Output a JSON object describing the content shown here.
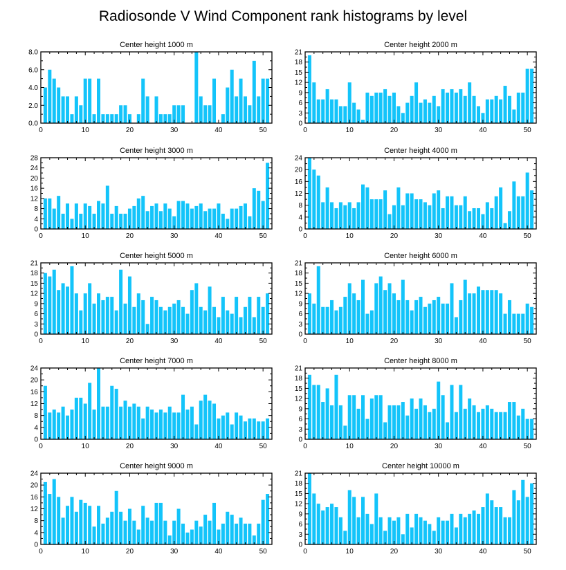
{
  "figure": {
    "title": "Radiosonde V Wind Component rank histograms by level",
    "bar_color": "#13c4fa",
    "axis_color": "#000000"
  },
  "chart_data": [
    {
      "type": "bar",
      "title": "Center height 1000 m",
      "xlabel": "",
      "ylabel": "",
      "xlim": [
        0,
        52
      ],
      "xticks": [
        0,
        10,
        20,
        30,
        40,
        50
      ],
      "ylim": [
        0,
        8
      ],
      "yticks": [
        0,
        2,
        4,
        6,
        8
      ],
      "ytick_labels": [
        "0.0",
        "2.0",
        "4.0",
        "6.0",
        "8.0"
      ],
      "x": [
        1,
        2,
        3,
        4,
        5,
        6,
        7,
        8,
        9,
        10,
        11,
        12,
        13,
        14,
        15,
        16,
        17,
        18,
        19,
        20,
        21,
        22,
        23,
        24,
        25,
        26,
        27,
        28,
        29,
        30,
        31,
        32,
        33,
        34,
        35,
        36,
        37,
        38,
        39,
        40,
        41,
        42,
        43,
        44,
        45,
        46,
        47,
        48,
        49,
        50,
        51
      ],
      "values": [
        4,
        6,
        5,
        4,
        3,
        3,
        1,
        3,
        2,
        5,
        5,
        1,
        5,
        1,
        1,
        1,
        1,
        2,
        2,
        1,
        0,
        1,
        5,
        3,
        0,
        3,
        1,
        1,
        1,
        2,
        2,
        2,
        0,
        0,
        8,
        3,
        2,
        2,
        5,
        0,
        1,
        4,
        6,
        3,
        5,
        3,
        2,
        7,
        3,
        5,
        5
      ]
    },
    {
      "type": "bar",
      "title": "Center height 2000 m",
      "xlabel": "",
      "ylabel": "",
      "xlim": [
        0,
        52
      ],
      "xticks": [
        0,
        10,
        20,
        30,
        40,
        50
      ],
      "ylim": [
        0,
        21
      ],
      "yticks": [
        0,
        3,
        6,
        9,
        12,
        15,
        18,
        21
      ],
      "ytick_labels": [
        "0",
        "3",
        "6",
        "9",
        "12",
        "15",
        "18",
        "21"
      ],
      "x": [
        1,
        2,
        3,
        4,
        5,
        6,
        7,
        8,
        9,
        10,
        11,
        12,
        13,
        14,
        15,
        16,
        17,
        18,
        19,
        20,
        21,
        22,
        23,
        24,
        25,
        26,
        27,
        28,
        29,
        30,
        31,
        32,
        33,
        34,
        35,
        36,
        37,
        38,
        39,
        40,
        41,
        42,
        43,
        44,
        45,
        46,
        47,
        48,
        49,
        50,
        51
      ],
      "values": [
        20,
        12,
        7,
        7,
        10,
        7,
        7,
        5,
        5,
        12,
        6,
        4,
        1,
        9,
        8,
        9,
        9,
        10,
        8,
        9,
        5,
        3,
        6,
        8,
        12,
        6,
        7,
        6,
        8,
        5,
        10,
        9,
        10,
        9,
        10,
        8,
        12,
        8,
        5,
        3,
        7,
        7,
        8,
        7,
        11,
        8,
        4,
        9,
        9,
        16,
        16
      ]
    },
    {
      "type": "bar",
      "title": "Center height 3000 m",
      "xlabel": "",
      "ylabel": "",
      "xlim": [
        0,
        52
      ],
      "xticks": [
        0,
        10,
        20,
        30,
        40,
        50
      ],
      "ylim": [
        0,
        28
      ],
      "yticks": [
        0,
        4,
        8,
        12,
        16,
        20,
        24,
        28
      ],
      "ytick_labels": [
        "0",
        "4",
        "8",
        "12",
        "16",
        "20",
        "24",
        "28"
      ],
      "x": [
        1,
        2,
        3,
        4,
        5,
        6,
        7,
        8,
        9,
        10,
        11,
        12,
        13,
        14,
        15,
        16,
        17,
        18,
        19,
        20,
        21,
        22,
        23,
        24,
        25,
        26,
        27,
        28,
        29,
        30,
        31,
        32,
        33,
        34,
        35,
        36,
        37,
        38,
        39,
        40,
        41,
        42,
        43,
        44,
        45,
        46,
        47,
        48,
        49,
        50,
        51
      ],
      "values": [
        12,
        12,
        8,
        13,
        6,
        10,
        4,
        10,
        6,
        10,
        9,
        6,
        11,
        10,
        17,
        6,
        9,
        6,
        6,
        8,
        9,
        12,
        13,
        7,
        9,
        10,
        7,
        10,
        8,
        5,
        11,
        11,
        10,
        8,
        9,
        10,
        7,
        8,
        8,
        10,
        6,
        4,
        8,
        8,
        9,
        10,
        5,
        16,
        15,
        11,
        26
      ]
    },
    {
      "type": "bar",
      "title": "Center height 4000 m",
      "xlabel": "",
      "ylabel": "",
      "xlim": [
        0,
        52
      ],
      "xticks": [
        0,
        10,
        20,
        30,
        40,
        50
      ],
      "ylim": [
        0,
        24
      ],
      "yticks": [
        0,
        4,
        8,
        12,
        16,
        20,
        24
      ],
      "ytick_labels": [
        "0",
        "4",
        "8",
        "12",
        "16",
        "20",
        "24"
      ],
      "x": [
        1,
        2,
        3,
        4,
        5,
        6,
        7,
        8,
        9,
        10,
        11,
        12,
        13,
        14,
        15,
        16,
        17,
        18,
        19,
        20,
        21,
        22,
        23,
        24,
        25,
        26,
        27,
        28,
        29,
        30,
        31,
        32,
        33,
        34,
        35,
        36,
        37,
        38,
        39,
        40,
        41,
        42,
        43,
        44,
        45,
        46,
        47,
        48,
        49,
        50,
        51
      ],
      "values": [
        24,
        20,
        18,
        9,
        14,
        9,
        7,
        9,
        8,
        9,
        7,
        9,
        15,
        14,
        10,
        10,
        10,
        13,
        5,
        8,
        14,
        8,
        12,
        12,
        10,
        10,
        9,
        8,
        12,
        13,
        7,
        11,
        11,
        8,
        8,
        11,
        6,
        7,
        7,
        5,
        9,
        7,
        11,
        14,
        2,
        6,
        16,
        11,
        11,
        19,
        13
      ]
    },
    {
      "type": "bar",
      "title": "Center height 5000 m",
      "xlabel": "",
      "ylabel": "",
      "xlim": [
        0,
        52
      ],
      "xticks": [
        0,
        10,
        20,
        30,
        40,
        50
      ],
      "ylim": [
        0,
        21
      ],
      "yticks": [
        0,
        3,
        6,
        9,
        12,
        15,
        18,
        21
      ],
      "ytick_labels": [
        "0",
        "3",
        "6",
        "9",
        "12",
        "15",
        "18",
        "21"
      ],
      "x": [
        1,
        2,
        3,
        4,
        5,
        6,
        7,
        8,
        9,
        10,
        11,
        12,
        13,
        14,
        15,
        16,
        17,
        18,
        19,
        20,
        21,
        22,
        23,
        24,
        25,
        26,
        27,
        28,
        29,
        30,
        31,
        32,
        33,
        34,
        35,
        36,
        37,
        38,
        39,
        40,
        41,
        42,
        43,
        44,
        45,
        46,
        47,
        48,
        49,
        50,
        51
      ],
      "values": [
        18,
        17,
        19,
        13,
        15,
        14,
        20,
        12,
        7,
        12,
        15,
        9,
        12,
        10,
        11,
        11,
        7,
        19,
        9,
        17,
        8,
        12,
        10,
        3,
        11,
        10,
        8,
        7,
        8,
        9,
        10,
        8,
        6,
        13,
        15,
        8,
        7,
        14,
        8,
        5,
        11,
        7,
        6,
        11,
        5,
        8,
        11,
        5,
        11,
        8,
        12
      ]
    },
    {
      "type": "bar",
      "title": "Center height 6000 m",
      "xlabel": "",
      "ylabel": "",
      "xlim": [
        0,
        52
      ],
      "xticks": [
        0,
        10,
        20,
        30,
        40,
        50
      ],
      "ylim": [
        0,
        21
      ],
      "yticks": [
        0,
        3,
        6,
        9,
        12,
        15,
        18,
        21
      ],
      "ytick_labels": [
        "0",
        "3",
        "6",
        "9",
        "12",
        "15",
        "18",
        "21"
      ],
      "x": [
        1,
        2,
        3,
        4,
        5,
        6,
        7,
        8,
        9,
        10,
        11,
        12,
        13,
        14,
        15,
        16,
        17,
        18,
        19,
        20,
        21,
        22,
        23,
        24,
        25,
        26,
        27,
        28,
        29,
        30,
        31,
        32,
        33,
        34,
        35,
        36,
        37,
        38,
        39,
        40,
        41,
        42,
        43,
        44,
        45,
        46,
        47,
        48,
        49,
        50,
        51
      ],
      "values": [
        12,
        9,
        20,
        8,
        8,
        10,
        7,
        8,
        11,
        15,
        12,
        10,
        16,
        6,
        7,
        15,
        17,
        13,
        15,
        12,
        10,
        16,
        10,
        7,
        10,
        11,
        8,
        9,
        10,
        11,
        9,
        9,
        15,
        5,
        10,
        16,
        12,
        12,
        14,
        13,
        13,
        13,
        13,
        12,
        6,
        10,
        6,
        6,
        6,
        9,
        8
      ]
    },
    {
      "type": "bar",
      "title": "Center height 7000 m",
      "xlabel": "",
      "ylabel": "",
      "xlim": [
        0,
        52
      ],
      "xticks": [
        0,
        10,
        20,
        30,
        40,
        50
      ],
      "ylim": [
        0,
        24
      ],
      "yticks": [
        0,
        4,
        8,
        12,
        16,
        20,
        24
      ],
      "ytick_labels": [
        "0",
        "4",
        "8",
        "12",
        "16",
        "20",
        "24"
      ],
      "x": [
        1,
        2,
        3,
        4,
        5,
        6,
        7,
        8,
        9,
        10,
        11,
        12,
        13,
        14,
        15,
        16,
        17,
        18,
        19,
        20,
        21,
        22,
        23,
        24,
        25,
        26,
        27,
        28,
        29,
        30,
        31,
        32,
        33,
        34,
        35,
        36,
        37,
        38,
        39,
        40,
        41,
        42,
        43,
        44,
        45,
        46,
        47,
        48,
        49,
        50,
        51
      ],
      "values": [
        18,
        9,
        10,
        9,
        11,
        8,
        10,
        14,
        14,
        12,
        19,
        10,
        24,
        11,
        11,
        18,
        17,
        11,
        13,
        11,
        12,
        11,
        7,
        11,
        10,
        9,
        10,
        9,
        11,
        9,
        9,
        15,
        10,
        11,
        5,
        13,
        15,
        13,
        12,
        7,
        8,
        9,
        5,
        9,
        8,
        6,
        7,
        7,
        6,
        6,
        7
      ]
    },
    {
      "type": "bar",
      "title": "Center height 8000 m",
      "xlabel": "",
      "ylabel": "",
      "xlim": [
        0,
        52
      ],
      "xticks": [
        0,
        10,
        20,
        30,
        40,
        50
      ],
      "ylim": [
        0,
        21
      ],
      "yticks": [
        0,
        3,
        6,
        9,
        12,
        15,
        18,
        21
      ],
      "ytick_labels": [
        "0",
        "3",
        "6",
        "9",
        "12",
        "15",
        "18",
        "21"
      ],
      "x": [
        1,
        2,
        3,
        4,
        5,
        6,
        7,
        8,
        9,
        10,
        11,
        12,
        13,
        14,
        15,
        16,
        17,
        18,
        19,
        20,
        21,
        22,
        23,
        24,
        25,
        26,
        27,
        28,
        29,
        30,
        31,
        32,
        33,
        34,
        35,
        36,
        37,
        38,
        39,
        40,
        41,
        42,
        43,
        44,
        45,
        46,
        47,
        48,
        49,
        50,
        51
      ],
      "values": [
        19,
        16,
        16,
        11,
        15,
        10,
        19,
        10,
        4,
        13,
        13,
        9,
        13,
        6,
        12,
        13,
        13,
        5,
        10,
        10,
        10,
        11,
        7,
        12,
        9,
        12,
        10,
        8,
        9,
        17,
        13,
        5,
        16,
        8,
        16,
        9,
        12,
        10,
        8,
        9,
        10,
        9,
        8,
        8,
        8,
        11,
        11,
        7,
        9,
        6,
        6
      ]
    },
    {
      "type": "bar",
      "title": "Center height 9000 m",
      "xlabel": "",
      "ylabel": "",
      "xlim": [
        0,
        52
      ],
      "xticks": [
        0,
        10,
        20,
        30,
        40,
        50
      ],
      "ylim": [
        0,
        24
      ],
      "yticks": [
        0,
        4,
        8,
        12,
        16,
        20,
        24
      ],
      "ytick_labels": [
        "0",
        "4",
        "8",
        "12",
        "16",
        "20",
        "24"
      ],
      "x": [
        1,
        2,
        3,
        4,
        5,
        6,
        7,
        8,
        9,
        10,
        11,
        12,
        13,
        14,
        15,
        16,
        17,
        18,
        19,
        20,
        21,
        22,
        23,
        24,
        25,
        26,
        27,
        28,
        29,
        30,
        31,
        32,
        33,
        34,
        35,
        36,
        37,
        38,
        39,
        40,
        41,
        42,
        43,
        44,
        45,
        46,
        47,
        48,
        49,
        50,
        51
      ],
      "values": [
        21,
        17,
        22,
        16,
        9,
        13,
        16,
        11,
        15,
        14,
        13,
        6,
        13,
        7,
        9,
        11,
        18,
        11,
        8,
        12,
        8,
        5,
        13,
        9,
        8,
        14,
        14,
        8,
        3,
        8,
        12,
        7,
        4,
        5,
        8,
        6,
        10,
        8,
        14,
        5,
        7,
        11,
        10,
        7,
        9,
        7,
        7,
        3,
        7,
        15,
        17
      ]
    },
    {
      "type": "bar",
      "title": "Center height 10000 m",
      "xlabel": "",
      "ylabel": "",
      "xlim": [
        0,
        52
      ],
      "xticks": [
        0,
        10,
        20,
        30,
        40,
        50
      ],
      "ylim": [
        0,
        21
      ],
      "yticks": [
        0,
        3,
        6,
        9,
        12,
        15,
        18,
        21
      ],
      "ytick_labels": [
        "0",
        "3",
        "6",
        "9",
        "12",
        "15",
        "18",
        "21"
      ],
      "x": [
        1,
        2,
        3,
        4,
        5,
        6,
        7,
        8,
        9,
        10,
        11,
        12,
        13,
        14,
        15,
        16,
        17,
        18,
        19,
        20,
        21,
        22,
        23,
        24,
        25,
        26,
        27,
        28,
        29,
        30,
        31,
        32,
        33,
        34,
        35,
        36,
        37,
        38,
        39,
        40,
        41,
        42,
        43,
        44,
        45,
        46,
        47,
        48,
        49,
        50,
        51
      ],
      "values": [
        21,
        15,
        12,
        10,
        11,
        12,
        11,
        8,
        4,
        16,
        14,
        8,
        14,
        9,
        6,
        15,
        8,
        4,
        8,
        7,
        8,
        3,
        9,
        5,
        9,
        8,
        7,
        6,
        4,
        8,
        7,
        7,
        9,
        5,
        9,
        8,
        9,
        10,
        9,
        11,
        15,
        13,
        11,
        11,
        8,
        8,
        16,
        13,
        19,
        14,
        18
      ]
    }
  ]
}
